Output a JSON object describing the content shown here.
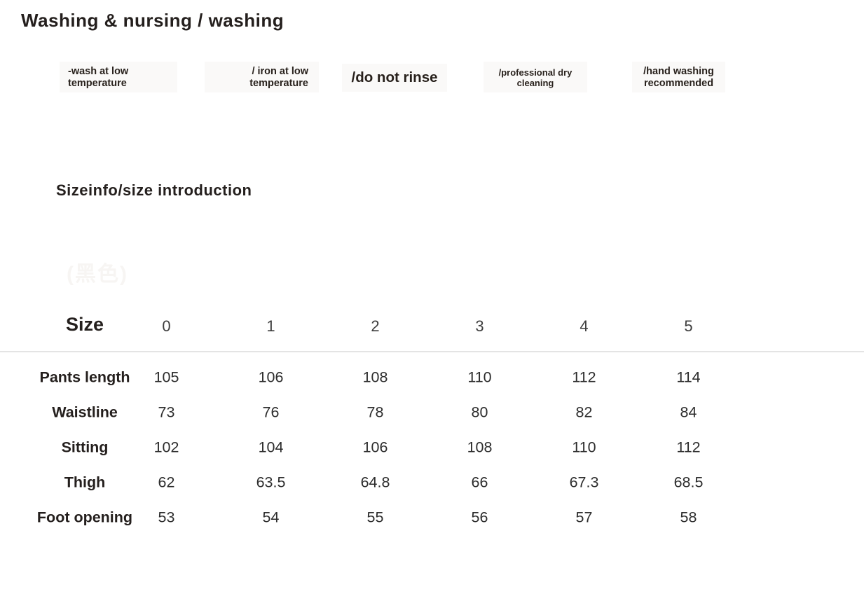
{
  "page": {
    "title": "Washing & nursing / washing",
    "size_heading": "Sizeinfo/size introduction",
    "faint_note": "(黑色)"
  },
  "colors": {
    "heading_text": "#241f1d",
    "value_text": "#2d2d2d",
    "column_header_text": "#3d3d3d",
    "divider": "#e4e4e4",
    "care_tile_background": "#faf9f8",
    "page_background": "#ffffff"
  },
  "care": {
    "items": [
      {
        "label": "-wash at low temperature"
      },
      {
        "label": "/ iron at low temperature"
      },
      {
        "label": "/do not rinse"
      },
      {
        "label": "/professional dry cleaning"
      },
      {
        "label": "/hand washing recommended"
      }
    ]
  },
  "size_table": {
    "header_label": "Size",
    "columns": [
      "0",
      "1",
      "2",
      "3",
      "4",
      "5"
    ],
    "rows": [
      {
        "label": "Pants length",
        "values": [
          "105",
          "106",
          "108",
          "110",
          "112",
          "114"
        ]
      },
      {
        "label": "Waistline",
        "values": [
          "73",
          "76",
          "78",
          "80",
          "82",
          "84"
        ]
      },
      {
        "label": "Sitting",
        "values": [
          "102",
          "104",
          "106",
          "108",
          "110",
          "112"
        ]
      },
      {
        "label": "Thigh",
        "values": [
          "62",
          "63.5",
          "64.8",
          "66",
          "67.3",
          "68.5"
        ]
      },
      {
        "label": "Foot opening",
        "values": [
          "53",
          "54",
          "55",
          "56",
          "57",
          "58"
        ]
      }
    ]
  }
}
